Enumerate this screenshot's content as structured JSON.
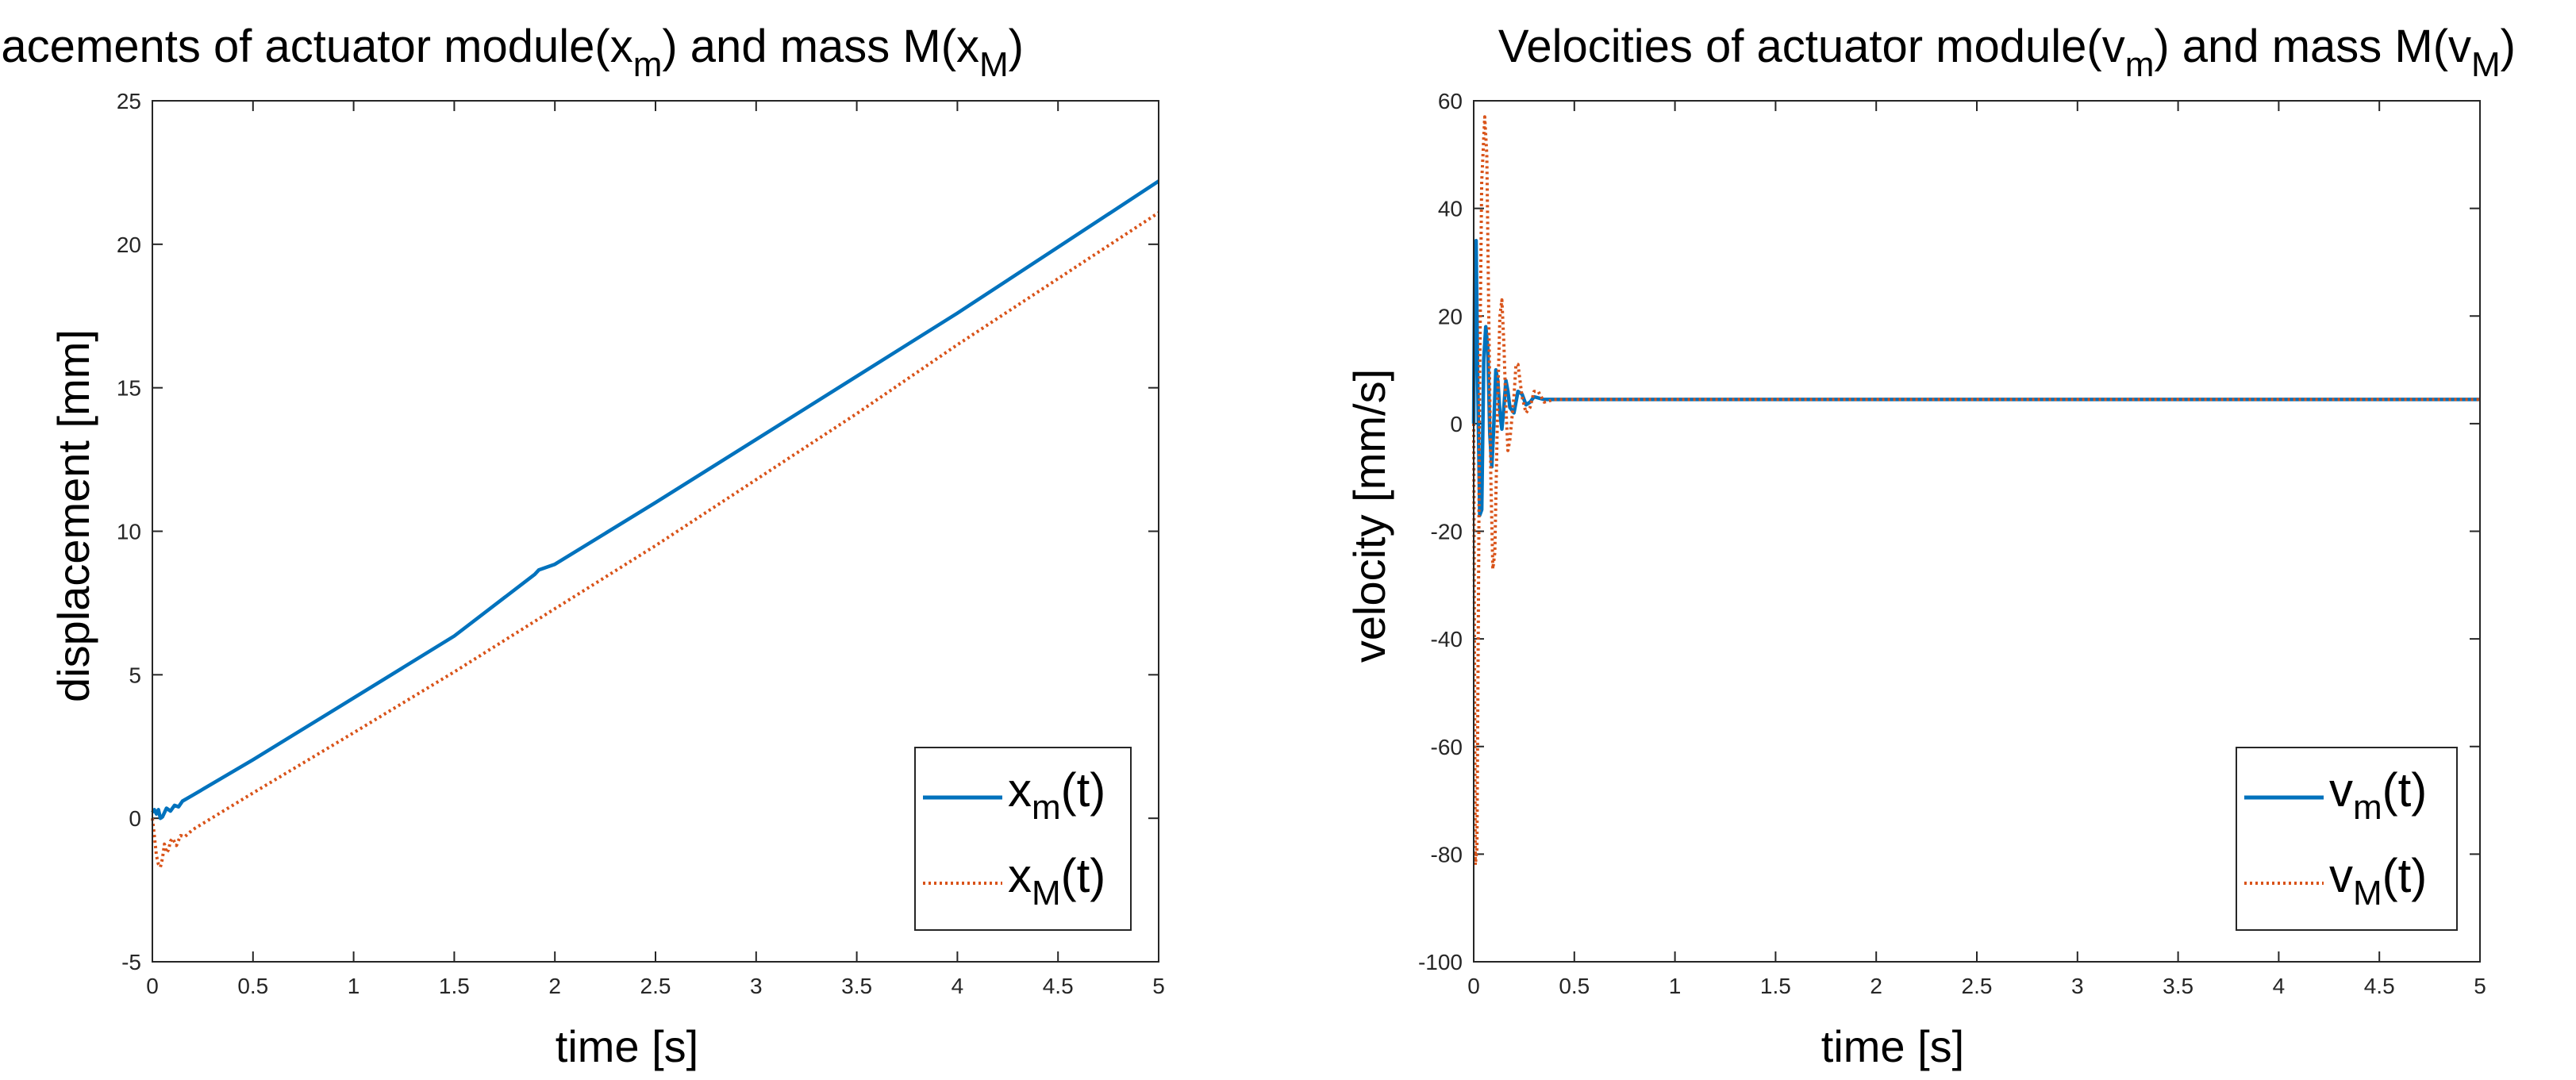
{
  "chart_data": [
    {
      "type": "line",
      "title": {
        "text": "Displacements of actuator module(x",
        "sub1": "m",
        "mid": ") and mass M(x",
        "sub2": "M",
        "end": ")"
      },
      "xlabel": "time [s]",
      "ylabel": "displacement [mm]",
      "xlim": [
        0,
        5
      ],
      "ylim": [
        -5,
        25
      ],
      "xticks": [
        "0",
        "0.5",
        "1",
        "1.5",
        "2",
        "2.5",
        "3",
        "3.5",
        "4",
        "4.5",
        "5"
      ],
      "yticks": [
        "-5",
        "0",
        "5",
        "10",
        "15",
        "20",
        "25"
      ],
      "legend_position": "bottom-right",
      "series": [
        {
          "name": "x_m(t)",
          "label": {
            "main": "x",
            "sub": "m",
            "end": "(t)"
          },
          "color": "#0072BD",
          "style": "solid",
          "points": [
            [
              0,
              0.2
            ],
            [
              0.01,
              0.3
            ],
            [
              0.02,
              0.15
            ],
            [
              0.03,
              0.3
            ],
            [
              0.04,
              0.0
            ],
            [
              0.05,
              0.05
            ],
            [
              0.07,
              0.35
            ],
            [
              0.09,
              0.25
            ],
            [
              0.11,
              0.45
            ],
            [
              0.13,
              0.4
            ],
            [
              0.15,
              0.6
            ],
            [
              0.2,
              0.8
            ],
            [
              0.5,
              2.04
            ],
            [
              1.0,
              4.19
            ],
            [
              1.5,
              6.35
            ],
            [
              1.9,
              8.5
            ],
            [
              1.92,
              8.65
            ],
            [
              2.0,
              8.85
            ],
            [
              2.5,
              11.0
            ],
            [
              3.0,
              13.2
            ],
            [
              3.5,
              15.4
            ],
            [
              4.0,
              17.6
            ],
            [
              4.5,
              19.9
            ],
            [
              5.0,
              22.2
            ]
          ]
        },
        {
          "name": "x_M(t)",
          "label": {
            "main": "x",
            "sub": "M",
            "end": "(t)"
          },
          "color": "#D95319",
          "style": "dotted",
          "points": [
            [
              0,
              0.0
            ],
            [
              0.01,
              -0.6
            ],
            [
              0.02,
              -1.3
            ],
            [
              0.03,
              -1.6
            ],
            [
              0.04,
              -1.7
            ],
            [
              0.05,
              -1.4
            ],
            [
              0.06,
              -0.9
            ],
            [
              0.07,
              -1.2
            ],
            [
              0.08,
              -1.1
            ],
            [
              0.09,
              -0.8
            ],
            [
              0.1,
              -0.7
            ],
            [
              0.12,
              -0.95
            ],
            [
              0.14,
              -0.6
            ],
            [
              0.16,
              -0.65
            ],
            [
              0.2,
              -0.4
            ],
            [
              0.5,
              0.88
            ],
            [
              1.0,
              2.98
            ],
            [
              1.5,
              5.1
            ],
            [
              2.0,
              7.3
            ],
            [
              2.5,
              9.5
            ],
            [
              3.0,
              11.8
            ],
            [
              3.5,
              14.1
            ],
            [
              4.0,
              16.5
            ],
            [
              4.5,
              18.8
            ],
            [
              5.0,
              21.1
            ]
          ]
        }
      ]
    },
    {
      "type": "line",
      "title": {
        "text": "Velocities of actuator module(v",
        "sub1": "m",
        "mid": ") and mass M(v",
        "sub2": "M",
        "end": ")"
      },
      "xlabel": "time [s]",
      "ylabel": "velocity [mm/s]",
      "xlim": [
        0,
        5
      ],
      "ylim": [
        -100,
        60
      ],
      "xticks": [
        "0",
        "0.5",
        "1",
        "1.5",
        "2",
        "2.5",
        "3",
        "3.5",
        "4",
        "4.5",
        "5"
      ],
      "yticks": [
        "-100",
        "-80",
        "-60",
        "-40",
        "-20",
        "0",
        "20",
        "40",
        "60"
      ],
      "legend_position": "bottom-right",
      "series": [
        {
          "name": "v_m(t)",
          "label": {
            "main": "v",
            "sub": "m",
            "end": "(t)"
          },
          "color": "#0072BD",
          "style": "solid",
          "points": [
            [
              0,
              0
            ],
            [
              0.005,
              30
            ],
            [
              0.012,
              34
            ],
            [
              0.02,
              8
            ],
            [
              0.03,
              -17
            ],
            [
              0.04,
              -16
            ],
            [
              0.05,
              12
            ],
            [
              0.06,
              18
            ],
            [
              0.07,
              14
            ],
            [
              0.08,
              -2
            ],
            [
              0.09,
              -8
            ],
            [
              0.1,
              0
            ],
            [
              0.11,
              10
            ],
            [
              0.12,
              8
            ],
            [
              0.13,
              2
            ],
            [
              0.14,
              -1
            ],
            [
              0.15,
              3
            ],
            [
              0.16,
              8
            ],
            [
              0.17,
              6
            ],
            [
              0.18,
              3
            ],
            [
              0.2,
              2
            ],
            [
              0.22,
              6
            ],
            [
              0.24,
              5.5
            ],
            [
              0.26,
              3.5
            ],
            [
              0.28,
              4
            ],
            [
              0.3,
              5
            ],
            [
              0.35,
              4.5
            ],
            [
              0.4,
              4.5
            ],
            [
              5.0,
              4.5
            ]
          ]
        },
        {
          "name": "v_M(t)",
          "label": {
            "main": "v",
            "sub": "M",
            "end": "(t)"
          },
          "color": "#D95319",
          "style": "dotted",
          "points": [
            [
              0,
              0
            ],
            [
              0.008,
              -82
            ],
            [
              0.016,
              -79
            ],
            [
              0.024,
              -30
            ],
            [
              0.03,
              10
            ],
            [
              0.04,
              45
            ],
            [
              0.055,
              57
            ],
            [
              0.065,
              50
            ],
            [
              0.075,
              20
            ],
            [
              0.085,
              -10
            ],
            [
              0.095,
              -27
            ],
            [
              0.105,
              -24
            ],
            [
              0.12,
              5
            ],
            [
              0.13,
              20
            ],
            [
              0.14,
              23
            ],
            [
              0.15,
              15
            ],
            [
              0.16,
              3
            ],
            [
              0.17,
              -5
            ],
            [
              0.18,
              -3
            ],
            [
              0.2,
              5
            ],
            [
              0.21,
              11
            ],
            [
              0.22,
              11
            ],
            [
              0.24,
              5
            ],
            [
              0.26,
              2
            ],
            [
              0.28,
              3
            ],
            [
              0.3,
              6
            ],
            [
              0.32,
              6
            ],
            [
              0.35,
              4
            ],
            [
              0.4,
              4.5
            ],
            [
              0.5,
              4.5
            ],
            [
              5.0,
              4.5
            ]
          ]
        }
      ]
    }
  ]
}
